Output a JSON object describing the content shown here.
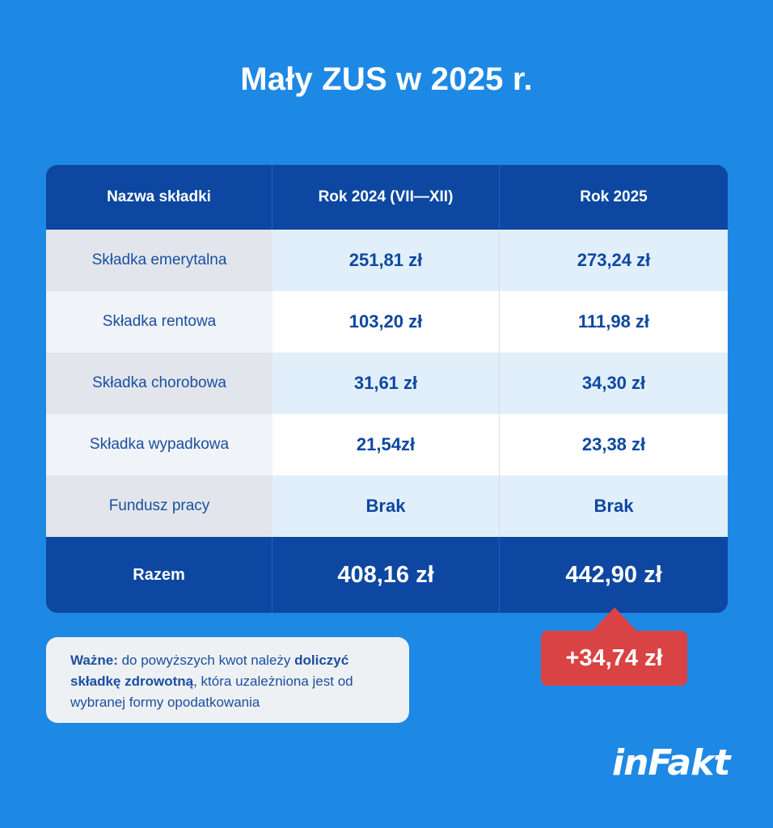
{
  "title": "Mały ZUS w 2025 r.",
  "table": {
    "headers": [
      "Nazwa składki",
      "Rok 2024 (VII—XII)",
      "Rok 2025"
    ],
    "rows": [
      [
        "Składka emerytalna",
        "251,81 zł",
        "273,24 zł"
      ],
      [
        "Składka rentowa",
        "103,20 zł",
        "111,98 zł"
      ],
      [
        "Składka chorobowa",
        "31,61 zł",
        "34,30 zł"
      ],
      [
        "Składka wypadkowa",
        "21,54zł",
        "23,38 zł"
      ],
      [
        "Fundusz pracy",
        "Brak",
        "Brak"
      ]
    ],
    "total": [
      "Razem",
      "408,16 zł",
      "442,90 zł"
    ]
  },
  "note": {
    "p1_bold": "Ważne:",
    "p2": " do powyższych kwot należy ",
    "p3_bold": "doliczyć składkę zdrowotną",
    "p4": ", która uzależniona jest od wybranej formy opodatkowania"
  },
  "difference_badge": "+34,74 zł",
  "logo": "inFakt",
  "colors": {
    "background": "#1e88e5",
    "table_dark": "#0d47a1",
    "badge": "#d94343",
    "text_blue": "#1a4fa0"
  }
}
